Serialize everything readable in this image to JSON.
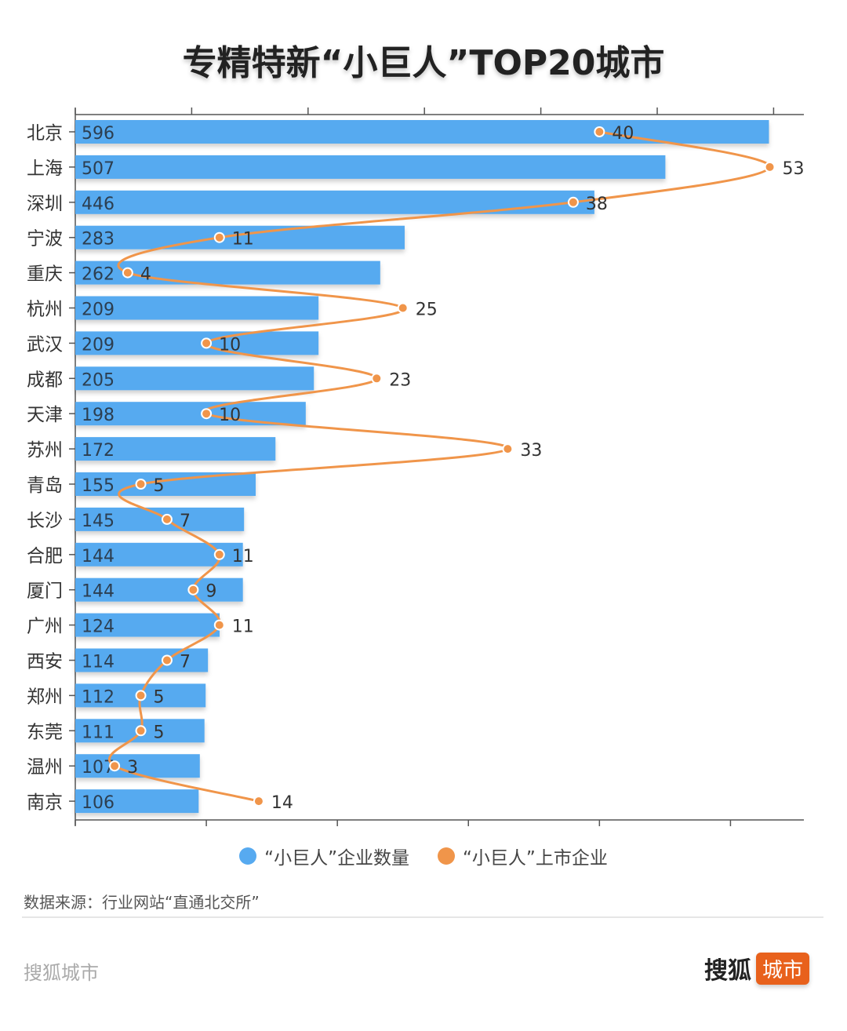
{
  "chart_data": {
    "type": "bar+line",
    "title": "专精特新“小巨人”TOP20城市",
    "categories": [
      "北京",
      "上海",
      "深圳",
      "宁波",
      "重庆",
      "杭州",
      "武汉",
      "成都",
      "天津",
      "苏州",
      "青岛",
      "长沙",
      "合肥",
      "厦门",
      "广州",
      "西安",
      "郑州",
      "东莞",
      "温州",
      "南京"
    ],
    "series": [
      {
        "name": "“小巨人”企业数量",
        "type": "bar",
        "color": "#57aaf0",
        "values": [
          596,
          507,
          446,
          283,
          262,
          209,
          209,
          205,
          198,
          172,
          155,
          145,
          144,
          144,
          124,
          114,
          112,
          111,
          107,
          106
        ]
      },
      {
        "name": "“小巨人”上市企业",
        "type": "line",
        "color": "#f0954a",
        "values": [
          40,
          53,
          38,
          11,
          4,
          25,
          10,
          23,
          10,
          33,
          5,
          7,
          11,
          9,
          11,
          7,
          5,
          5,
          3,
          14
        ]
      }
    ],
    "bar_axis_range": [
      0,
      626
    ],
    "line_axis_range": [
      0,
      55.6
    ],
    "legend_position": "bottom"
  },
  "source": "数据来源：行业网站“直通北交所”",
  "footer": {
    "left": "搜狐城市",
    "brand_a": "搜狐",
    "brand_b": "城市"
  }
}
